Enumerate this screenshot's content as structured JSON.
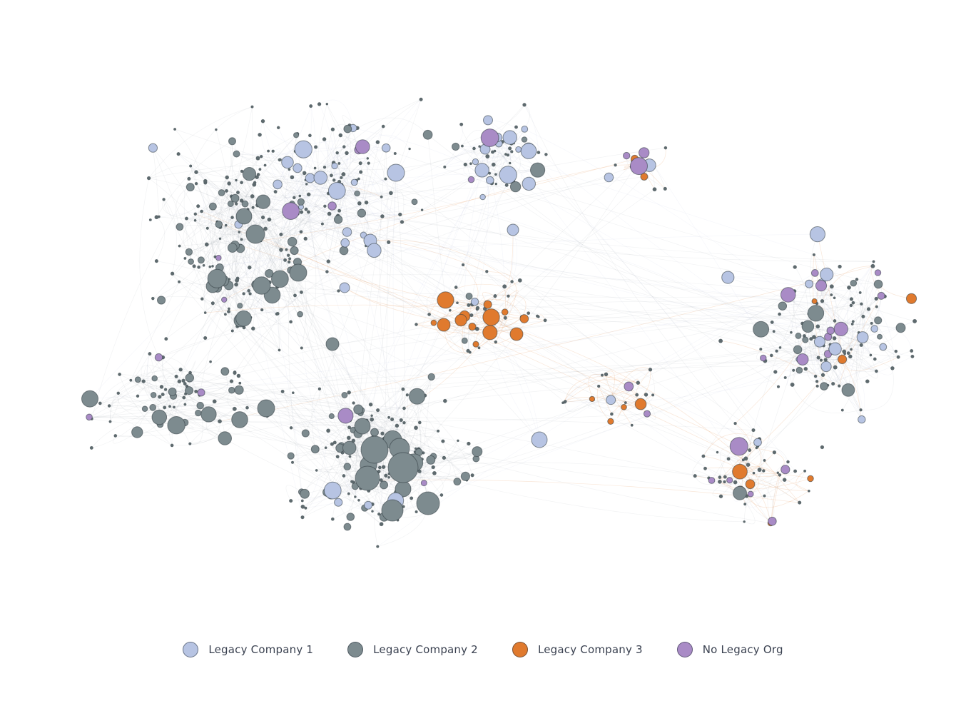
{
  "colors": {
    "legacy_company_1": "#b7c4e3",
    "legacy_company_2": "#7d8b8f",
    "legacy_company_3": "#e07a2e",
    "no_legacy_org": "#a98bc6",
    "edge": "#9aa3ab",
    "node_outline": "#2f3a40"
  },
  "legend": [
    {
      "label": "Legacy Company 1",
      "color_key": "legacy_company_1"
    },
    {
      "label": "Legacy Company 2",
      "color_key": "legacy_company_2"
    },
    {
      "label": "Legacy Company 3",
      "color_key": "legacy_company_3"
    },
    {
      "label": "No Legacy Org",
      "color_key": "no_legacy_org"
    }
  ]
}
